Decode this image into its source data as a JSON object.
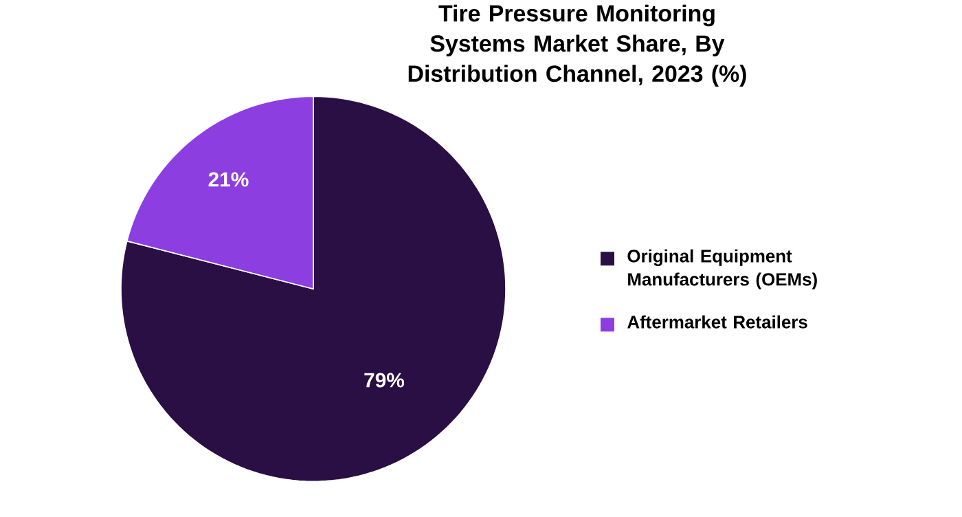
{
  "chart_data": {
    "type": "pie",
    "title": "Tire Pressure Monitoring Systems Market Share, By Distribution Channel, 2023 (%)",
    "categories": [
      "Original Equipment Manufacturers (OEMs)",
      "Aftermarket Retailers"
    ],
    "values": [
      79,
      21
    ],
    "colors": [
      "#2a0f45",
      "#8d3ee0"
    ],
    "value_labels": [
      "79%",
      "21%"
    ],
    "legend": "right"
  }
}
